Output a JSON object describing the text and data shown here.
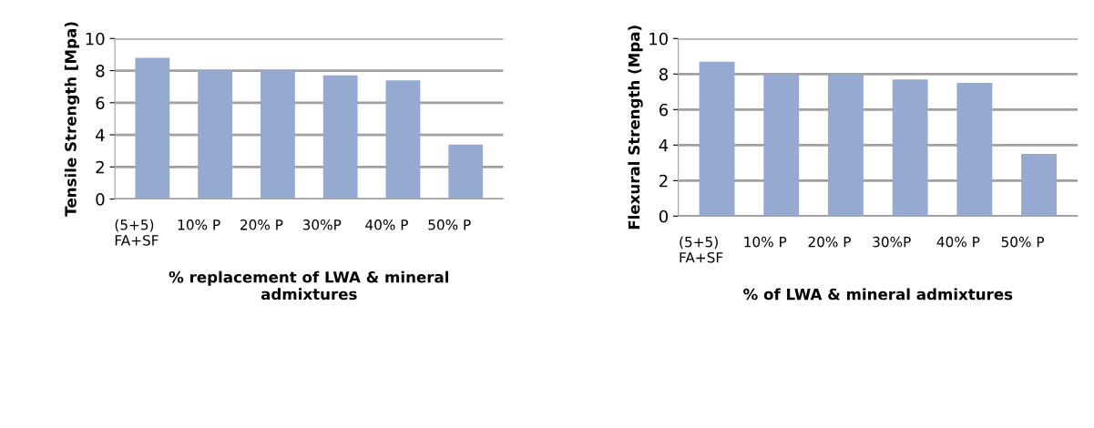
{
  "chart_data": [
    {
      "type": "bar",
      "categories": [
        "(5+5)\nFA+SF",
        "10% P",
        "20% P",
        "30%P",
        "40% P",
        "50% P"
      ],
      "values": [
        8.8,
        8.0,
        8.0,
        7.7,
        7.4,
        3.4
      ],
      "color": "#95a9d1",
      "ylabel": "Tensile Strength [Mpa)",
      "xlabel": "% replacement of LWA & mineral\nadmixtures",
      "ylim": [
        0,
        10
      ],
      "yticks": [
        0,
        2,
        4,
        6,
        8,
        10
      ],
      "grid": "y"
    },
    {
      "type": "bar",
      "categories": [
        "(5+5)\nFA+SF",
        "10% P",
        "20% P",
        "30%P",
        "40% P",
        "50% P"
      ],
      "values": [
        8.7,
        8.0,
        8.0,
        7.7,
        7.5,
        3.5
      ],
      "color": "#95a9d1",
      "ylabel": "Flexural Strength (Mpa)",
      "xlabel": "% of LWA & mineral admixtures",
      "ylim": [
        0,
        10
      ],
      "yticks": [
        0,
        2,
        4,
        6,
        8,
        10
      ],
      "grid": "y"
    }
  ]
}
